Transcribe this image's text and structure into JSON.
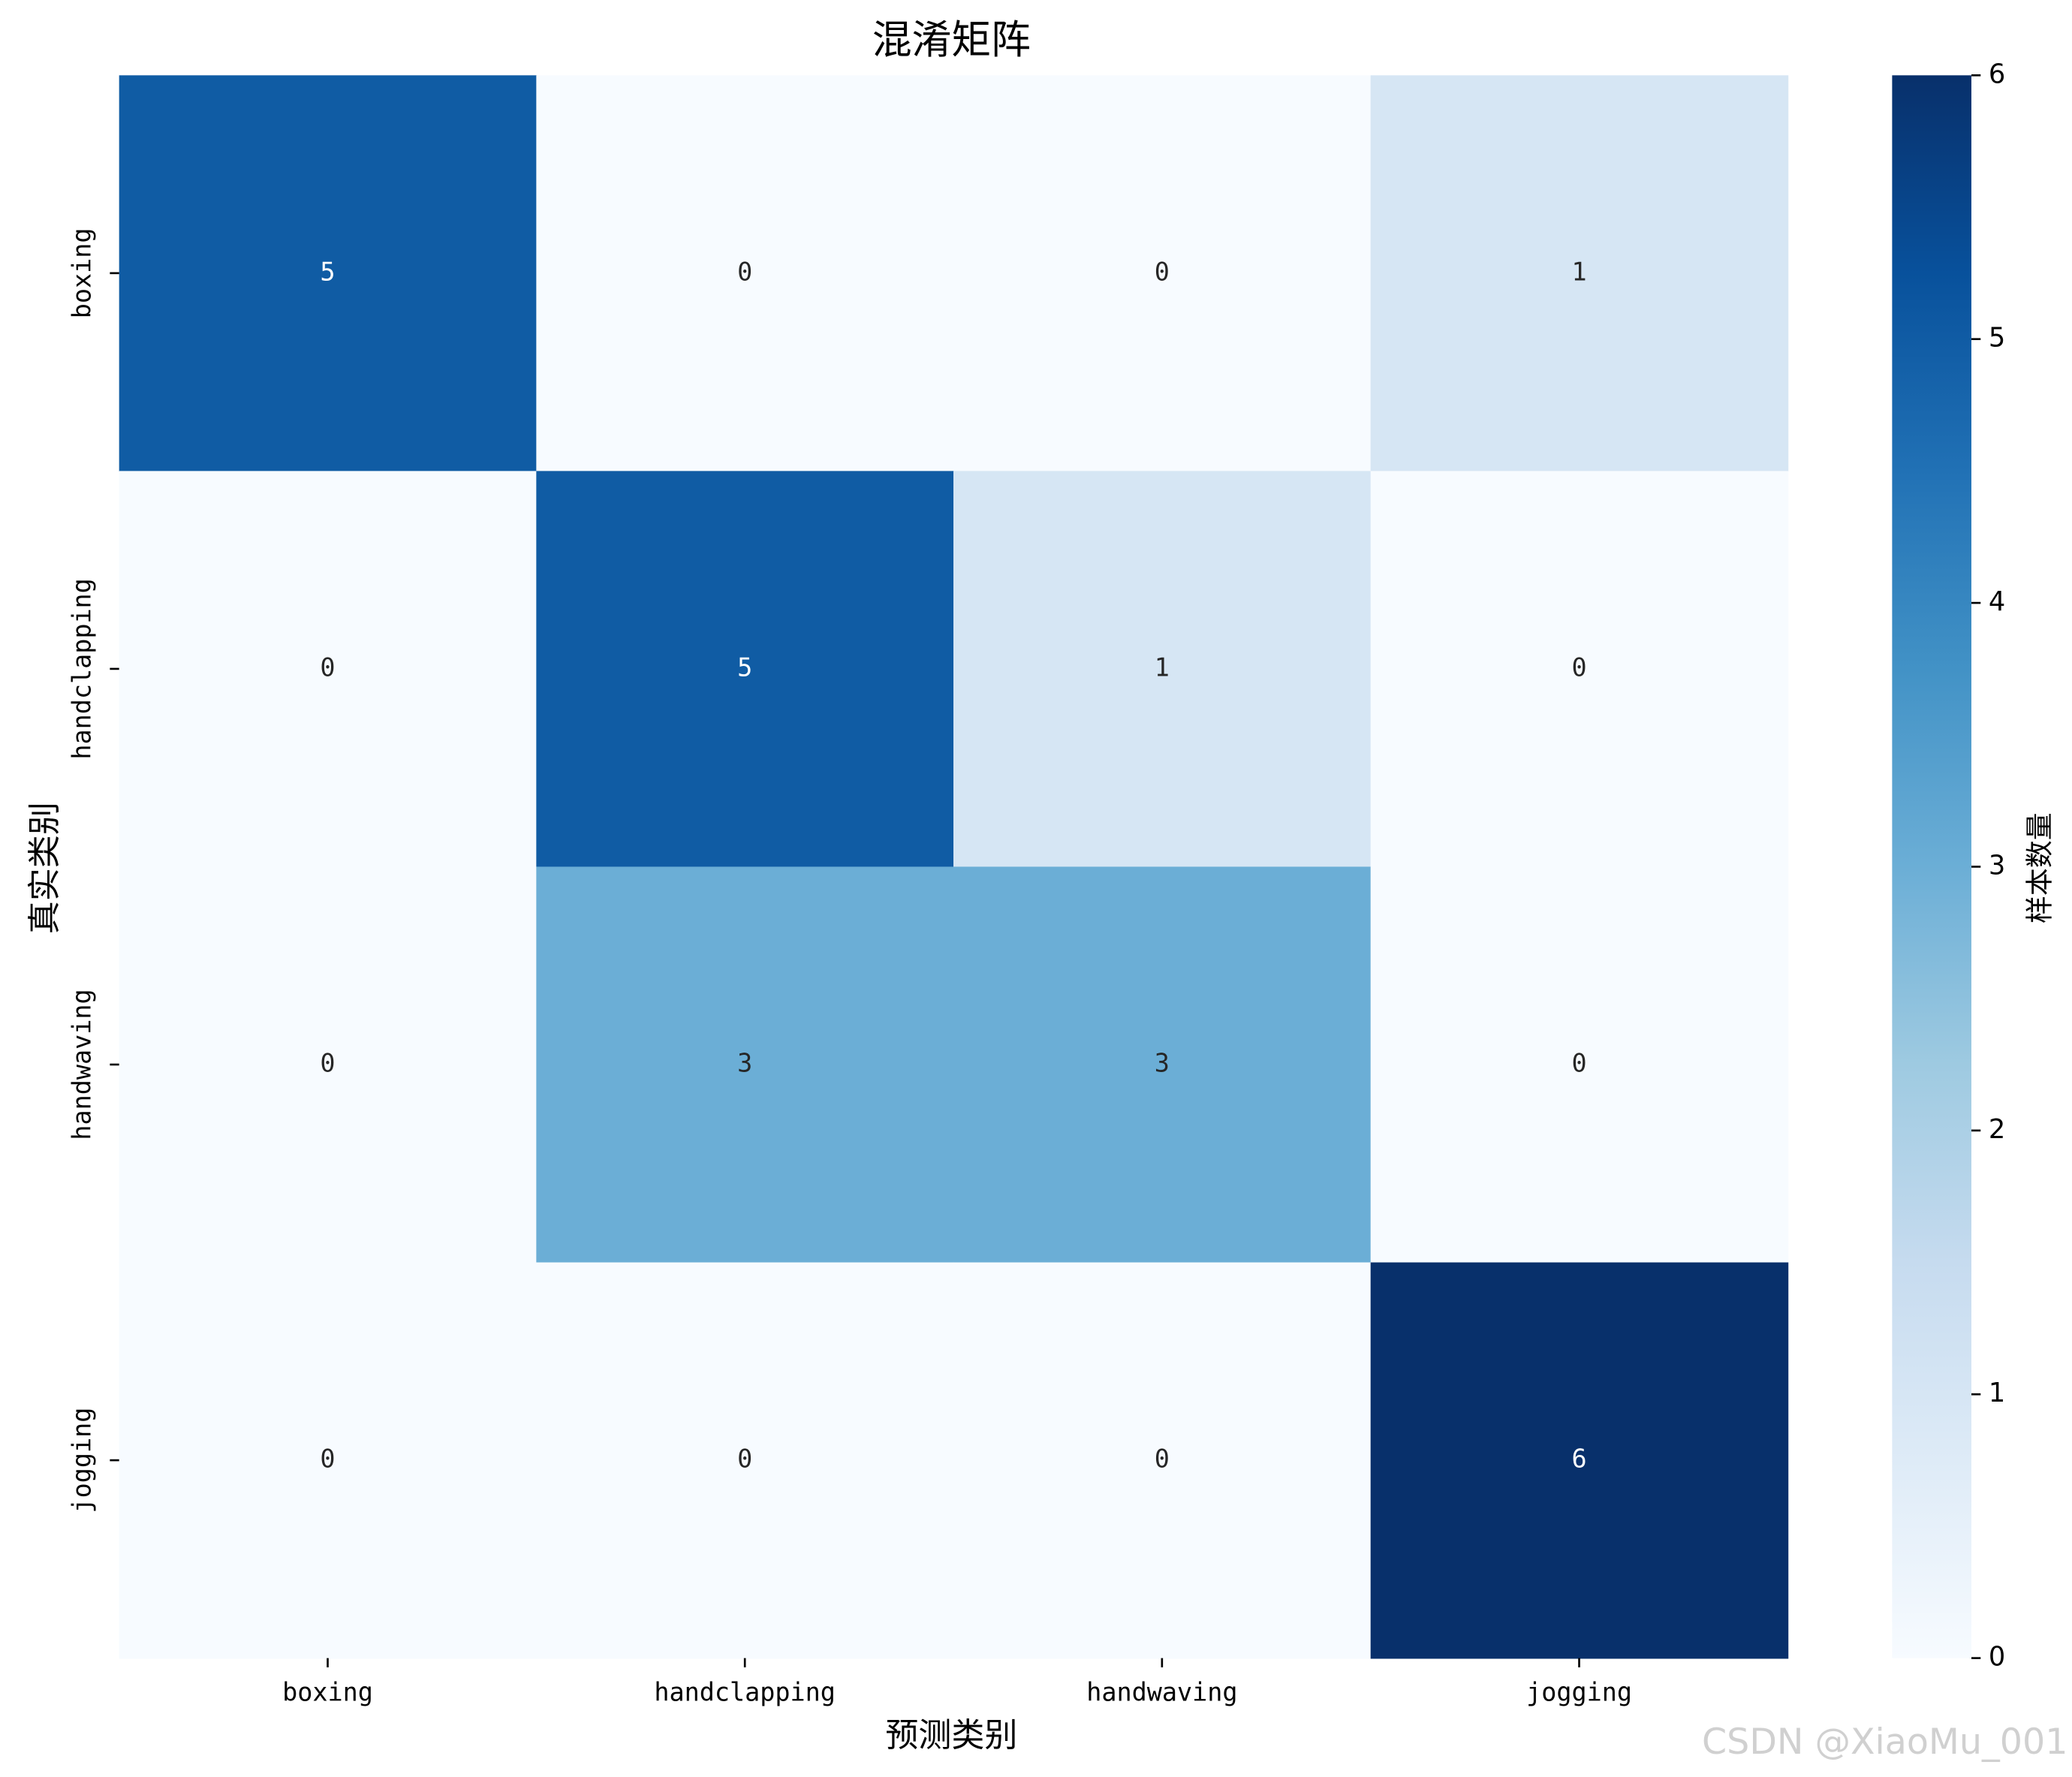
{
  "chart_data": {
    "type": "heatmap",
    "title": "混淆矩阵",
    "x_label": "预测类别",
    "y_label": "真实类别",
    "x_categories": [
      "boxing",
      "handclapping",
      "handwaving",
      "jogging"
    ],
    "y_categories": [
      "boxing",
      "handclapping",
      "handwaving",
      "jogging"
    ],
    "values": [
      [
        5,
        0,
        0,
        1
      ],
      [
        0,
        5,
        1,
        0
      ],
      [
        0,
        3,
        3,
        0
      ],
      [
        0,
        0,
        0,
        6
      ]
    ],
    "colormap": "Blues",
    "colorbar_label": "样本数量",
    "clim": [
      0,
      6
    ],
    "cticks": [
      0,
      1,
      2,
      3,
      4,
      5,
      6
    ],
    "watermark": "CSDN @XiaoMu_001"
  }
}
